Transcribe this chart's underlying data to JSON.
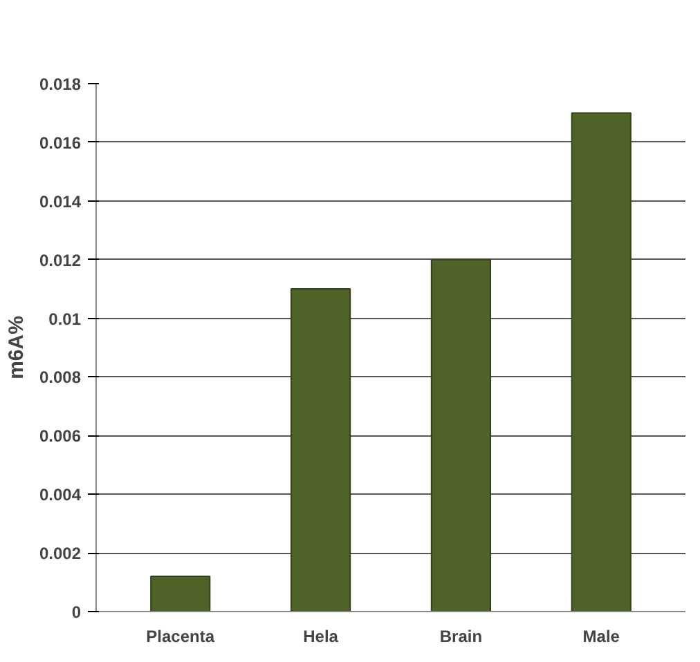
{
  "chart_data": {
    "type": "bar",
    "ylabel": "m6A%",
    "categories": [
      "Placenta",
      "Hela",
      "Brain",
      "Male"
    ],
    "values": [
      0.0012,
      0.011,
      0.012,
      0.017
    ],
    "color": "#4f6228",
    "ylim": [
      0,
      0.018
    ],
    "yticks": [
      0,
      0.002,
      0.004,
      0.006,
      0.008,
      0.01,
      0.012,
      0.014,
      0.016,
      0.018
    ],
    "grid": "y"
  }
}
